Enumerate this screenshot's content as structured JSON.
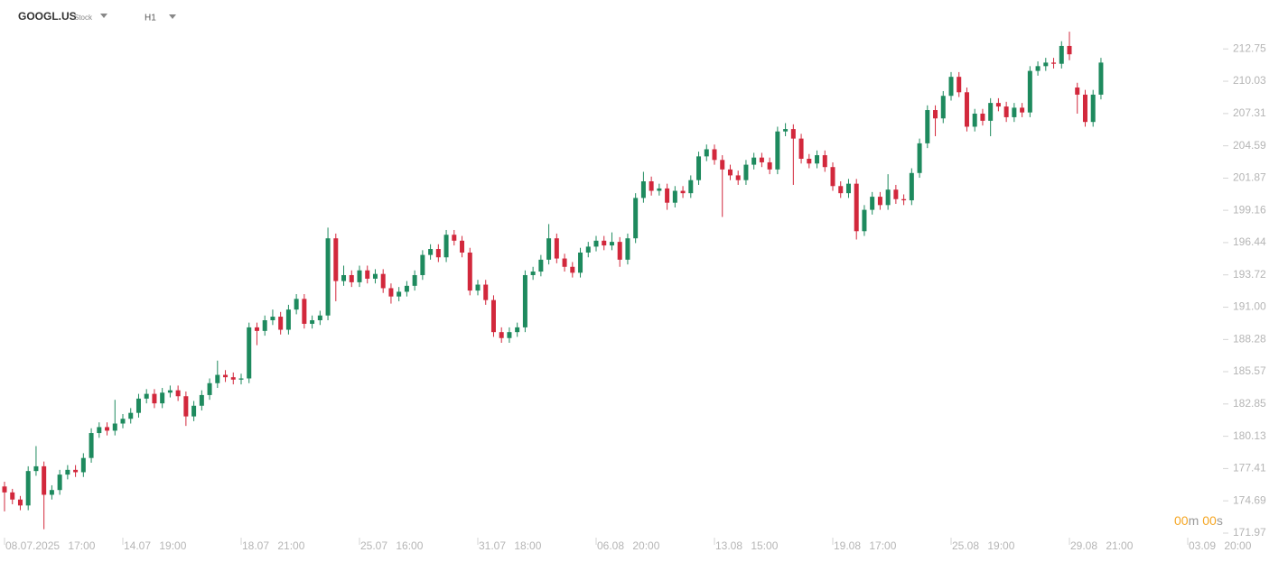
{
  "header": {
    "symbol": "GOOGL.US",
    "instrument_type": "Stock",
    "timeframe": "H1"
  },
  "countdown": {
    "minutes": "00",
    "minutes_unit": "m",
    "seconds": "00",
    "seconds_unit": "s"
  },
  "chart_data": {
    "type": "candlestick",
    "up_color": "#1e8a5e",
    "down_color": "#d2283c",
    "categories": [
      "08.07.2025 17:00",
      null,
      null,
      null,
      null,
      null,
      null,
      null,
      null,
      null,
      null,
      null,
      null,
      null,
      null,
      "14.07 19:00",
      null,
      null,
      null,
      null,
      null,
      null,
      null,
      null,
      null,
      null,
      null,
      null,
      null,
      null,
      "18.07 21:00",
      null,
      null,
      null,
      null,
      null,
      null,
      null,
      null,
      null,
      null,
      null,
      null,
      null,
      null,
      "25.07 16:00",
      null,
      null,
      null,
      null,
      null,
      null,
      null,
      null,
      null,
      null,
      null,
      null,
      null,
      null,
      "31.07 18:00",
      null,
      null,
      null,
      null,
      null,
      null,
      null,
      null,
      null,
      null,
      null,
      null,
      null,
      null,
      "06.08 20:00",
      null,
      null,
      null,
      null,
      null,
      null,
      null,
      null,
      null,
      null,
      null,
      null,
      null,
      null,
      "13.08 15:00",
      null,
      null,
      null,
      null,
      null,
      null,
      null,
      null,
      null,
      null,
      null,
      null,
      null,
      null,
      "19.08 17:00",
      null,
      null,
      null,
      null,
      null,
      null,
      null,
      null,
      null,
      null,
      null,
      null,
      null,
      null,
      "25.08 19:00",
      null,
      null,
      null,
      null,
      null,
      null,
      null,
      null,
      null,
      null,
      null,
      null,
      null,
      null,
      "29.08 21:00",
      null,
      null,
      null,
      null,
      null,
      null,
      null,
      null,
      null,
      null,
      null,
      null,
      null,
      null,
      "03.09 20:00"
    ],
    "open": [
      175.9,
      175.4,
      174.8,
      174.3,
      177.2,
      177.6,
      175.2,
      175.6,
      176.9,
      177.3,
      177.1,
      178.3,
      180.4,
      180.9,
      180.6,
      181.2,
      181.6,
      182.1,
      183.3,
      183.7,
      182.9,
      183.8,
      184.0,
      183.5,
      181.8,
      182.7,
      183.6,
      184.6,
      185.3,
      185.1,
      184.9,
      185.0,
      189.3,
      189.0,
      189.9,
      190.2,
      189.1,
      190.8,
      191.7,
      189.6,
      189.9,
      190.3,
      196.8,
      193.2,
      193.7,
      193.1,
      194.1,
      193.4,
      193.8,
      192.6,
      191.9,
      192.3,
      192.8,
      193.7,
      195.4,
      195.9,
      195.2,
      197.1,
      196.6,
      195.6,
      192.4,
      192.9,
      191.6,
      188.9,
      188.4,
      188.9,
      189.3,
      193.7,
      194.0,
      195.0,
      196.8,
      195.1,
      194.4,
      193.9,
      195.6,
      196.1,
      196.6,
      196.2,
      196.5,
      195.0,
      196.8,
      200.2,
      201.6,
      200.8,
      201.0,
      199.8,
      200.8,
      200.6,
      201.7,
      203.7,
      204.3,
      203.4,
      202.6,
      202.1,
      201.7,
      203.0,
      203.6,
      203.2,
      202.6,
      205.8,
      206.0,
      205.2,
      203.5,
      203.1,
      203.8,
      202.8,
      201.2,
      200.6,
      201.4,
      197.4,
      199.2,
      200.3,
      199.6,
      200.9,
      200.1,
      200.0,
      202.3,
      204.8,
      207.6,
      206.9,
      208.8,
      210.4,
      209.1,
      206.2,
      207.3,
      206.7,
      208.2,
      207.9,
      207.0,
      207.8,
      207.4,
      210.9,
      211.3,
      211.6,
      211.5,
      213.0,
      209.5,
      208.9,
      206.6,
      208.9,
      null,
      null,
      null,
      null,
      null,
      null,
      null,
      null,
      null,
      null,
      null
    ],
    "high": [
      176.3,
      175.7,
      175.1,
      177.6,
      179.3,
      178.0,
      176.0,
      177.3,
      177.7,
      177.7,
      178.7,
      180.8,
      181.3,
      181.3,
      183.2,
      182.0,
      182.5,
      183.7,
      184.1,
      184.1,
      184.2,
      184.4,
      184.4,
      183.9,
      183.1,
      184.0,
      185.0,
      186.5,
      185.7,
      185.5,
      185.4,
      189.7,
      189.7,
      190.3,
      190.8,
      190.6,
      191.2,
      192.1,
      192.1,
      190.3,
      190.7,
      197.7,
      197.2,
      194.5,
      194.1,
      194.5,
      194.5,
      194.2,
      194.2,
      193.0,
      192.7,
      193.2,
      194.1,
      195.8,
      196.3,
      196.3,
      197.5,
      197.5,
      197.0,
      196.0,
      193.3,
      193.3,
      192.0,
      189.3,
      189.3,
      189.7,
      194.1,
      194.4,
      195.4,
      198.0,
      197.2,
      195.5,
      194.8,
      196.0,
      196.5,
      197.0,
      197.0,
      197.3,
      196.9,
      197.2,
      200.6,
      202.4,
      202.0,
      201.4,
      201.4,
      201.2,
      201.2,
      202.1,
      204.1,
      204.7,
      204.7,
      203.8,
      203.0,
      202.5,
      203.4,
      204.0,
      204.0,
      203.6,
      206.2,
      206.5,
      206.4,
      205.6,
      203.9,
      204.2,
      204.2,
      203.2,
      201.6,
      201.8,
      201.8,
      199.6,
      200.7,
      200.7,
      202.2,
      201.3,
      200.5,
      202.7,
      205.2,
      208.0,
      208.0,
      209.2,
      210.8,
      210.8,
      209.5,
      207.7,
      207.7,
      208.6,
      208.6,
      208.3,
      208.2,
      208.2,
      211.3,
      211.7,
      212.0,
      212.0,
      213.4,
      214.2,
      209.9,
      209.3,
      209.3,
      212.0,
      null,
      null,
      null,
      null,
      null,
      null,
      null,
      null,
      null,
      null,
      null
    ],
    "low": [
      173.8,
      174.4,
      173.9,
      173.9,
      176.8,
      172.3,
      174.8,
      175.2,
      176.5,
      176.7,
      176.7,
      177.9,
      180.0,
      180.2,
      180.2,
      180.8,
      181.2,
      181.7,
      182.9,
      182.5,
      182.5,
      183.4,
      183.1,
      181.0,
      181.4,
      182.3,
      183.2,
      184.2,
      184.7,
      184.5,
      184.5,
      184.6,
      187.8,
      188.6,
      189.5,
      188.7,
      188.7,
      190.4,
      189.2,
      189.2,
      189.5,
      189.9,
      191.5,
      192.8,
      192.7,
      192.7,
      193.0,
      193.0,
      192.2,
      191.3,
      191.5,
      191.9,
      192.4,
      193.3,
      195.0,
      194.8,
      194.8,
      196.2,
      195.2,
      192.0,
      192.0,
      191.2,
      188.5,
      188.0,
      188.0,
      188.5,
      188.9,
      193.3,
      193.6,
      194.6,
      194.7,
      194.0,
      193.5,
      193.5,
      195.2,
      195.7,
      195.8,
      195.8,
      194.4,
      194.6,
      196.4,
      199.8,
      200.4,
      200.4,
      199.2,
      199.4,
      200.2,
      200.2,
      201.3,
      203.3,
      203.0,
      198.6,
      201.7,
      201.3,
      201.3,
      202.6,
      202.8,
      202.2,
      202.2,
      205.4,
      201.3,
      203.1,
      202.7,
      202.7,
      202.4,
      200.8,
      200.2,
      200.2,
      196.7,
      197.0,
      198.8,
      199.2,
      199.2,
      199.7,
      199.6,
      199.6,
      201.9,
      204.4,
      205.4,
      206.5,
      208.4,
      208.7,
      205.8,
      205.8,
      206.3,
      205.4,
      207.5,
      206.6,
      206.6,
      207.0,
      207.0,
      210.5,
      210.9,
      211.1,
      211.1,
      211.8,
      207.3,
      206.2,
      206.2,
      208.5,
      null,
      null,
      null,
      null,
      null,
      null,
      null,
      null,
      null,
      null,
      null
    ],
    "close": [
      175.4,
      174.8,
      174.3,
      177.2,
      177.6,
      175.2,
      175.6,
      176.9,
      177.3,
      177.1,
      178.3,
      180.4,
      180.9,
      180.6,
      181.2,
      181.6,
      182.1,
      183.3,
      183.7,
      182.9,
      183.8,
      184.0,
      183.5,
      181.8,
      182.7,
      183.6,
      184.6,
      185.3,
      185.1,
      184.9,
      185.0,
      189.3,
      189.0,
      189.9,
      190.2,
      189.1,
      190.8,
      191.7,
      189.6,
      189.9,
      190.3,
      196.8,
      193.2,
      193.7,
      193.1,
      194.1,
      193.4,
      193.8,
      192.6,
      191.9,
      192.3,
      192.8,
      193.7,
      195.4,
      195.9,
      195.2,
      197.1,
      196.6,
      195.6,
      192.4,
      192.9,
      191.6,
      188.9,
      188.4,
      188.9,
      189.3,
      193.7,
      194.0,
      195.0,
      196.8,
      195.1,
      194.4,
      193.9,
      195.6,
      196.1,
      196.6,
      196.2,
      196.5,
      195.0,
      196.8,
      200.2,
      201.6,
      200.8,
      201.0,
      199.8,
      200.8,
      200.6,
      201.7,
      203.7,
      204.3,
      203.4,
      202.6,
      202.1,
      201.7,
      203.0,
      203.6,
      203.2,
      202.6,
      205.8,
      206.0,
      205.2,
      203.5,
      203.1,
      203.8,
      202.8,
      201.2,
      200.6,
      201.4,
      197.4,
      199.2,
      200.3,
      199.6,
      200.9,
      200.1,
      200.0,
      202.3,
      204.8,
      207.6,
      206.9,
      208.8,
      210.4,
      209.1,
      206.2,
      207.3,
      206.7,
      208.2,
      207.9,
      207.0,
      207.8,
      207.4,
      210.9,
      211.3,
      211.6,
      211.5,
      213.0,
      212.3,
      208.9,
      206.6,
      208.9,
      211.6,
      null,
      null,
      null,
      null,
      null,
      null,
      null,
      null,
      null,
      null,
      null
    ],
    "ylim": [
      171.97,
      215.2
    ],
    "yticks": [
      212.75,
      210.03,
      207.31,
      204.59,
      201.87,
      199.16,
      196.44,
      193.72,
      {
        "value": 191,
        "label": "191.00"
      },
      188.28,
      185.57,
      182.85,
      180.13,
      177.41,
      174.69,
      171.97
    ],
    "grid": false
  }
}
